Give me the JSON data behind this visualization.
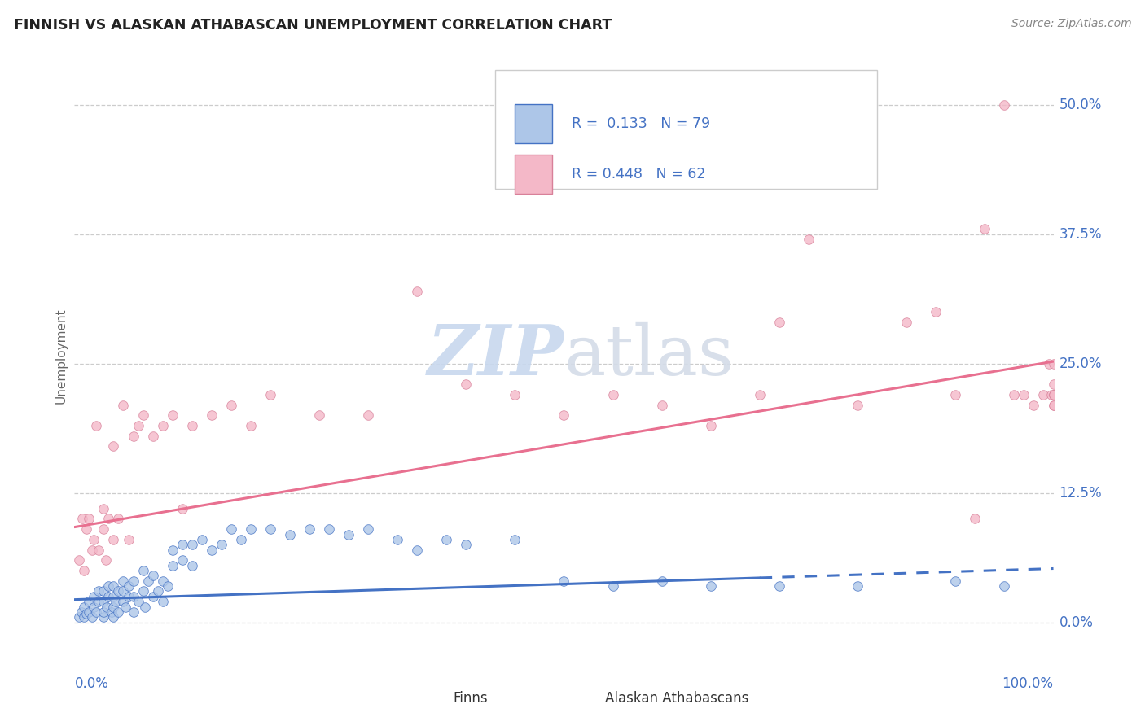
{
  "title": "FINNISH VS ALASKAN ATHABASCAN UNEMPLOYMENT CORRELATION CHART",
  "source": "Source: ZipAtlas.com",
  "ylabel": "Unemployment",
  "ytick_labels": [
    "0.0%",
    "12.5%",
    "25.0%",
    "37.5%",
    "50.0%"
  ],
  "ytick_values": [
    0.0,
    0.125,
    0.25,
    0.375,
    0.5
  ],
  "xlim": [
    0.0,
    1.0
  ],
  "ylim": [
    -0.03,
    0.545
  ],
  "legend_blue_R": "R =  0.133",
  "legend_blue_N": "N = 79",
  "legend_pink_R": "R = 0.448",
  "legend_pink_N": "N = 62",
  "legend_label_blue": "Finns",
  "legend_label_pink": "Alaskan Athabascans",
  "color_blue_scatter": "#adc6e8",
  "color_pink_scatter": "#f4b8c8",
  "color_blue_line": "#4472c4",
  "color_pink_line": "#e87090",
  "color_text_blue": "#4472c4",
  "color_text_dark": "#222222",
  "color_source": "#888888",
  "watermark_color": "#dde8f4",
  "blue_trend_x0": 0.0,
  "blue_trend_y0": 0.022,
  "blue_trend_x1": 1.0,
  "blue_trend_y1": 0.052,
  "blue_trend_dash_start": 0.7,
  "pink_trend_x0": 0.0,
  "pink_trend_y0": 0.092,
  "pink_trend_x1": 1.0,
  "pink_trend_y1": 0.252,
  "finns_x": [
    0.005,
    0.007,
    0.01,
    0.01,
    0.012,
    0.015,
    0.015,
    0.018,
    0.02,
    0.02,
    0.022,
    0.025,
    0.025,
    0.03,
    0.03,
    0.03,
    0.03,
    0.033,
    0.035,
    0.035,
    0.038,
    0.04,
    0.04,
    0.04,
    0.04,
    0.042,
    0.045,
    0.045,
    0.05,
    0.05,
    0.05,
    0.052,
    0.055,
    0.055,
    0.06,
    0.06,
    0.06,
    0.065,
    0.07,
    0.07,
    0.072,
    0.075,
    0.08,
    0.08,
    0.085,
    0.09,
    0.09,
    0.095,
    0.1,
    0.1,
    0.11,
    0.11,
    0.12,
    0.12,
    0.13,
    0.14,
    0.15,
    0.16,
    0.17,
    0.18,
    0.2,
    0.22,
    0.24,
    0.26,
    0.28,
    0.3,
    0.33,
    0.35,
    0.38,
    0.4,
    0.45,
    0.5,
    0.55,
    0.6,
    0.65,
    0.72,
    0.8,
    0.9,
    0.95
  ],
  "finns_y": [
    0.005,
    0.01,
    0.005,
    0.015,
    0.008,
    0.01,
    0.02,
    0.005,
    0.015,
    0.025,
    0.01,
    0.02,
    0.03,
    0.005,
    0.01,
    0.02,
    0.03,
    0.015,
    0.025,
    0.035,
    0.01,
    0.005,
    0.015,
    0.025,
    0.035,
    0.02,
    0.01,
    0.03,
    0.02,
    0.03,
    0.04,
    0.015,
    0.025,
    0.035,
    0.01,
    0.025,
    0.04,
    0.02,
    0.03,
    0.05,
    0.015,
    0.04,
    0.025,
    0.045,
    0.03,
    0.02,
    0.04,
    0.035,
    0.055,
    0.07,
    0.06,
    0.075,
    0.055,
    0.075,
    0.08,
    0.07,
    0.075,
    0.09,
    0.08,
    0.09,
    0.09,
    0.085,
    0.09,
    0.09,
    0.085,
    0.09,
    0.08,
    0.07,
    0.08,
    0.075,
    0.08,
    0.04,
    0.035,
    0.04,
    0.035,
    0.035,
    0.035,
    0.04,
    0.035
  ],
  "athabascan_x": [
    0.005,
    0.008,
    0.01,
    0.012,
    0.015,
    0.018,
    0.02,
    0.022,
    0.025,
    0.03,
    0.03,
    0.032,
    0.035,
    0.04,
    0.04,
    0.045,
    0.05,
    0.055,
    0.06,
    0.065,
    0.07,
    0.08,
    0.09,
    0.1,
    0.11,
    0.12,
    0.14,
    0.16,
    0.18,
    0.2,
    0.25,
    0.3,
    0.35,
    0.4,
    0.45,
    0.5,
    0.55,
    0.6,
    0.65,
    0.7,
    0.72,
    0.75,
    0.8,
    0.85,
    0.88,
    0.9,
    0.92,
    0.93,
    0.95,
    0.96,
    0.97,
    0.98,
    0.99,
    0.995,
    0.998,
    1.0,
    1.0,
    1.0,
    1.0,
    1.0,
    1.0,
    1.0
  ],
  "athabascan_y": [
    0.06,
    0.1,
    0.05,
    0.09,
    0.1,
    0.07,
    0.08,
    0.19,
    0.07,
    0.09,
    0.11,
    0.06,
    0.1,
    0.08,
    0.17,
    0.1,
    0.21,
    0.08,
    0.18,
    0.19,
    0.2,
    0.18,
    0.19,
    0.2,
    0.11,
    0.19,
    0.2,
    0.21,
    0.19,
    0.22,
    0.2,
    0.2,
    0.32,
    0.23,
    0.22,
    0.2,
    0.22,
    0.21,
    0.19,
    0.22,
    0.29,
    0.37,
    0.21,
    0.29,
    0.3,
    0.22,
    0.1,
    0.38,
    0.5,
    0.22,
    0.22,
    0.21,
    0.22,
    0.25,
    0.22,
    0.21,
    0.22,
    0.23,
    0.21,
    0.25,
    0.22,
    0.22
  ]
}
